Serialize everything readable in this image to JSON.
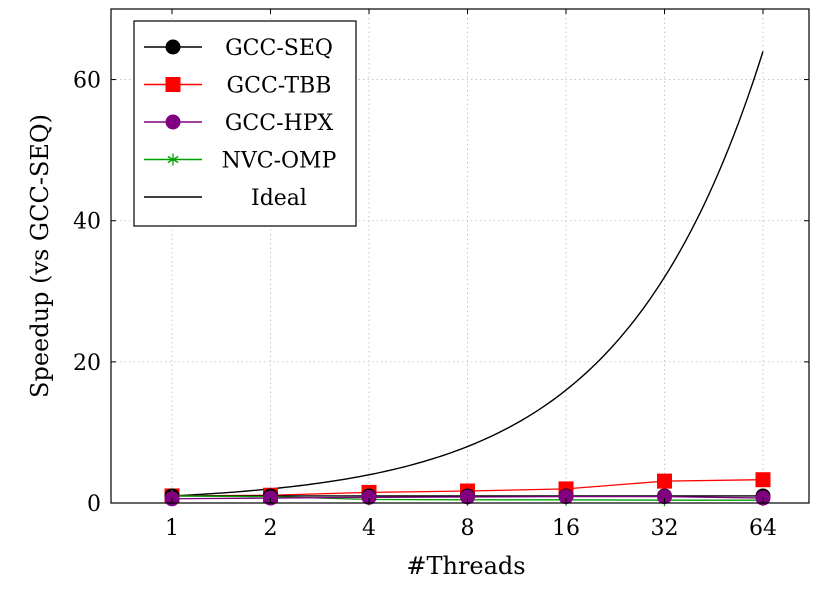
{
  "chart_data": {
    "type": "line",
    "categories": [
      "1",
      "2",
      "4",
      "8",
      "16",
      "32",
      "64"
    ],
    "x": [
      1,
      2,
      4,
      8,
      16,
      32,
      64
    ],
    "xscale": "log2",
    "xlabel": "#Threads",
    "ylabel": "Speedup (vs GCC-SEQ)",
    "ylim": [
      0,
      70
    ],
    "yticks": [
      0,
      20,
      40,
      60
    ],
    "grid": true,
    "legend_position": "top-left",
    "series": [
      {
        "name": "GCC-SEQ",
        "marker": "circle",
        "color": "#000000",
        "values": [
          1,
          1,
          1,
          1,
          1,
          1,
          1
        ]
      },
      {
        "name": "GCC-TBB",
        "marker": "square",
        "color": "#ff0000",
        "values": [
          1.0,
          1.1,
          1.5,
          1.7,
          2.0,
          3.1,
          3.3
        ]
      },
      {
        "name": "GCC-HPX",
        "marker": "circle",
        "color": "#800080",
        "values": [
          0.6,
          0.7,
          0.8,
          0.85,
          0.9,
          0.9,
          0.7
        ]
      },
      {
        "name": "NVC-OMP",
        "marker": "star",
        "color": "#00a000",
        "values": [
          1.0,
          0.9,
          0.5,
          0.45,
          0.45,
          0.4,
          0.4
        ]
      },
      {
        "name": "Ideal",
        "marker": "none",
        "color": "#000000",
        "ideal": true
      }
    ]
  }
}
